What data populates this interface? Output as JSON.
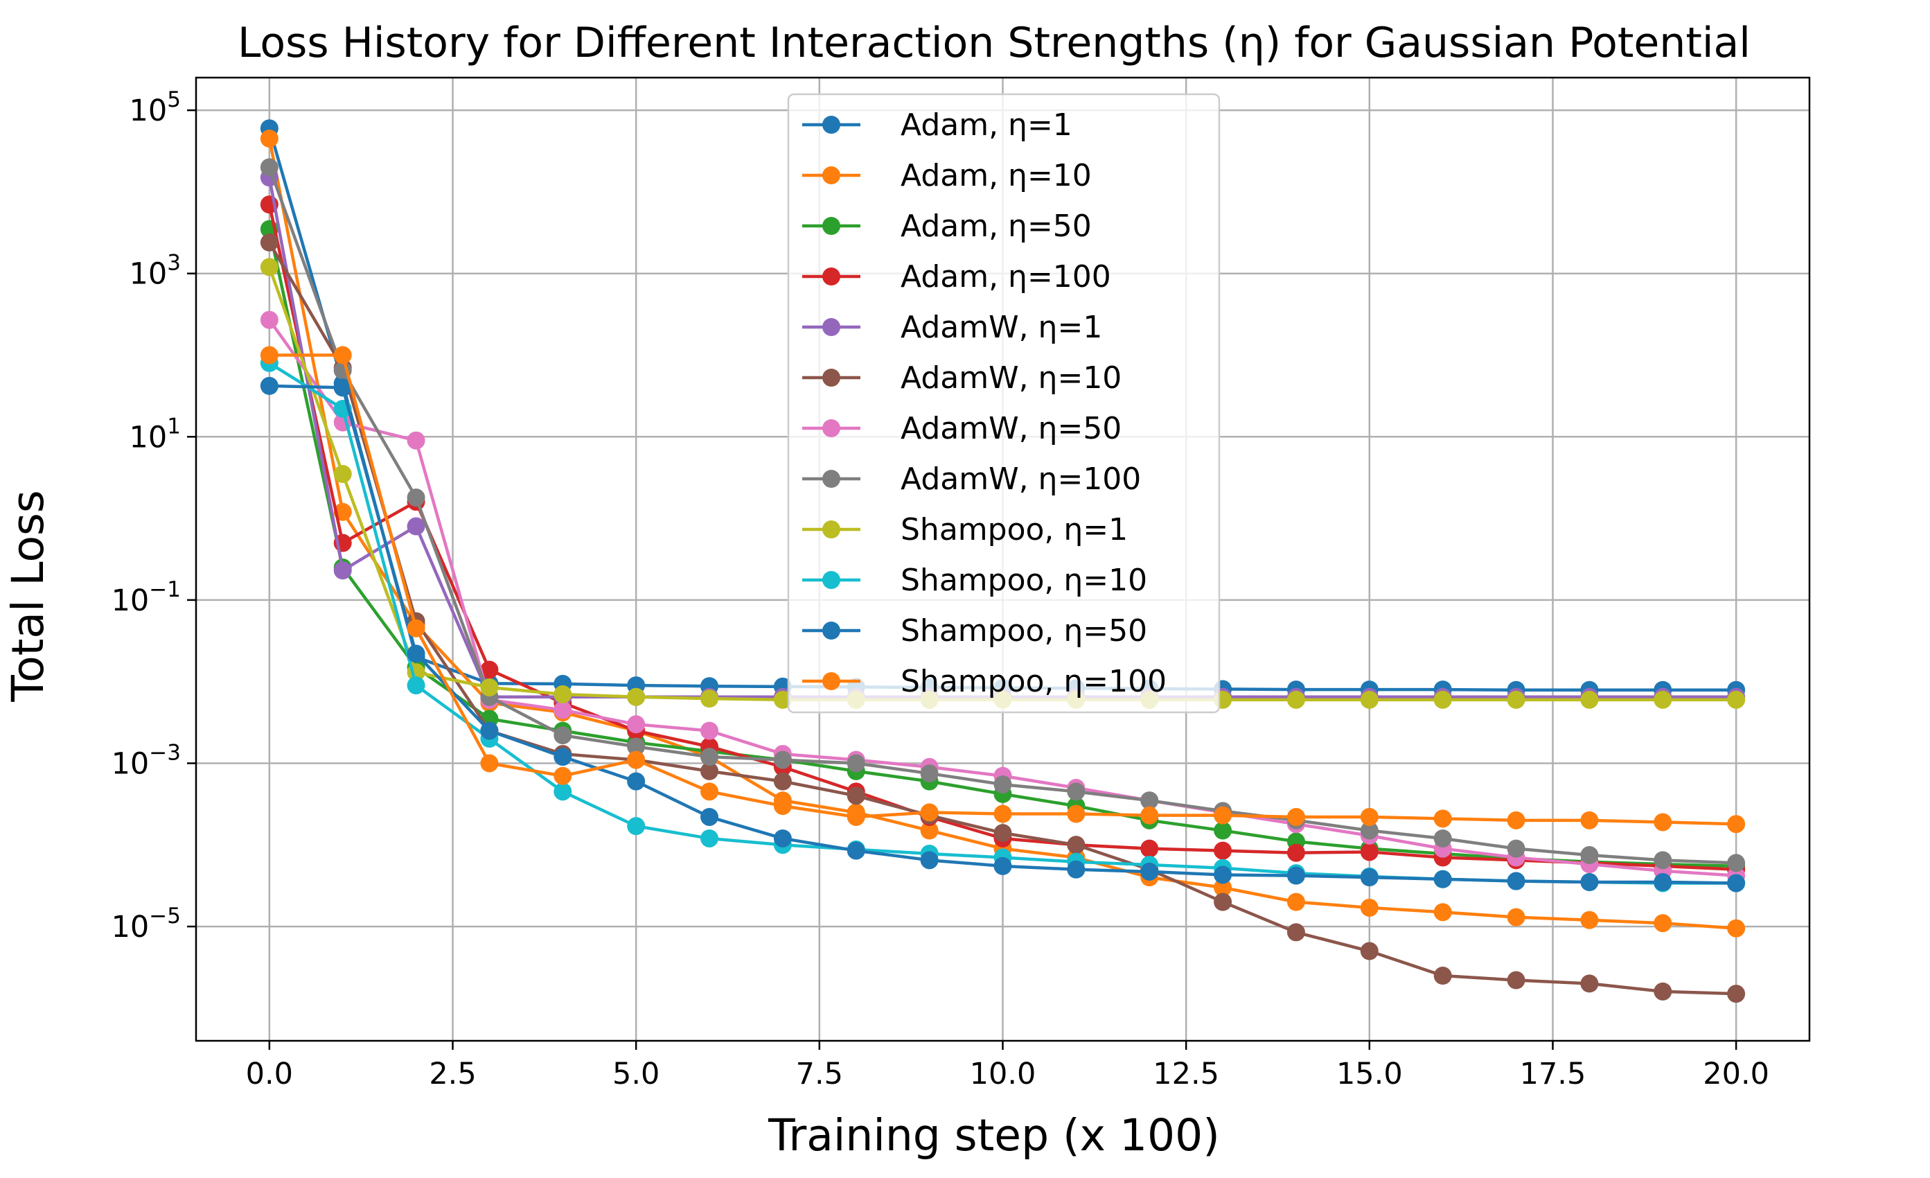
{
  "chart_data": {
    "type": "line",
    "title": "Loss History for Different Interaction Strengths (η) for Gaussian Potential",
    "xlabel": "Training step (x 100)",
    "ylabel": "Total Loss",
    "xlim": [
      -1,
      21
    ],
    "ylim_log10": [
      -6.4,
      5.4
    ],
    "yscale": "log",
    "grid": true,
    "legend_position": "upper-center",
    "x_ticks": [
      0,
      2.5,
      5,
      7.5,
      10,
      12.5,
      15,
      17.5,
      20
    ],
    "x_tick_labels": [
      "0.0",
      "2.5",
      "5.0",
      "7.5",
      "10.0",
      "12.5",
      "15.0",
      "17.5",
      "20.0"
    ],
    "y_ticks_log10": [
      -5,
      -3,
      -1,
      1,
      3,
      5
    ],
    "y_tick_labels": [
      {
        "base": "10",
        "exp": "−5"
      },
      {
        "base": "10",
        "exp": "−3"
      },
      {
        "base": "10",
        "exp": "−1"
      },
      {
        "base": "10",
        "exp": "1"
      },
      {
        "base": "10",
        "exp": "3"
      },
      {
        "base": "10",
        "exp": "5"
      }
    ],
    "x": [
      0,
      1,
      2,
      3,
      4,
      5,
      6,
      7,
      8,
      9,
      10,
      11,
      12,
      13,
      14,
      15,
      16,
      17,
      18,
      19,
      20
    ],
    "series": [
      {
        "name": "Adam, η=1",
        "color": "#1f77b4",
        "values": [
          60000,
          45,
          0.02,
          0.0095,
          0.0094,
          0.009,
          0.0088,
          0.0087,
          0.0086,
          0.0085,
          0.0084,
          0.0083,
          0.0082,
          0.0081,
          0.008,
          0.008,
          0.008,
          0.0079,
          0.0079,
          0.0079,
          0.0079
        ]
      },
      {
        "name": "Adam, η=10",
        "color": "#ff7f0e",
        "values": [
          45000,
          1.2,
          0.05,
          0.0055,
          0.0042,
          0.0025,
          0.0012,
          0.00035,
          0.00025,
          0.00015,
          9e-05,
          7e-05,
          4e-05,
          3e-05,
          2e-05,
          1.7e-05,
          1.5e-05,
          1.3e-05,
          1.2e-05,
          1.1e-05,
          9.5e-06
        ]
      },
      {
        "name": "Adam, η=50",
        "color": "#2ca02c",
        "values": [
          3500,
          0.25,
          0.015,
          0.0035,
          0.0025,
          0.0018,
          0.0014,
          0.0011,
          0.0008,
          0.0006,
          0.00042,
          0.0003,
          0.0002,
          0.00015,
          0.00011,
          9e-05,
          7.8e-05,
          6.8e-05,
          6.2e-05,
          5.8e-05,
          5.5e-05
        ]
      },
      {
        "name": "Adam, η=100",
        "color": "#d62728",
        "values": [
          7000,
          0.5,
          1.6,
          0.014,
          0.0055,
          0.0025,
          0.0016,
          0.0009,
          0.00045,
          0.00022,
          0.00012,
          0.0001,
          9e-05,
          8.5e-05,
          8e-05,
          8.2e-05,
          7e-05,
          6.5e-05,
          6e-05,
          5.5e-05,
          5e-05
        ]
      },
      {
        "name": "AdamW, η=1",
        "color": "#9467bd",
        "values": [
          15000,
          0.23,
          0.8,
          0.0065,
          0.0065,
          0.0065,
          0.0065,
          0.0065,
          0.0065,
          0.0065,
          0.0065,
          0.0065,
          0.0065,
          0.0065,
          0.0065,
          0.0065,
          0.0065,
          0.0065,
          0.0065,
          0.0065,
          0.0065
        ]
      },
      {
        "name": "AdamW, η=10",
        "color": "#8c564b",
        "values": [
          2400,
          70,
          0.055,
          0.0025,
          0.0013,
          0.0011,
          0.0008,
          0.0006,
          0.0004,
          0.00023,
          0.00014,
          0.0001,
          5e-05,
          2e-05,
          8.5e-06,
          5e-06,
          2.5e-06,
          2.2e-06,
          2e-06,
          1.6e-06,
          1.5e-06
        ]
      },
      {
        "name": "AdamW, η=50",
        "color": "#e377c2",
        "values": [
          270,
          15,
          9,
          0.006,
          0.0045,
          0.003,
          0.0025,
          0.0013,
          0.0011,
          0.0009,
          0.0007,
          0.0005,
          0.00035,
          0.00025,
          0.00018,
          0.00013,
          9e-05,
          7e-05,
          5.8e-05,
          4.8e-05,
          4.2e-05
        ]
      },
      {
        "name": "AdamW, η=100",
        "color": "#7f7f7f",
        "values": [
          20000,
          65,
          1.8,
          0.0065,
          0.0022,
          0.0016,
          0.0012,
          0.0011,
          0.001,
          0.00075,
          0.00055,
          0.00045,
          0.00035,
          0.00026,
          0.0002,
          0.00015,
          0.00012,
          9e-05,
          7.5e-05,
          6.5e-05,
          6e-05
        ]
      },
      {
        "name": "Shampoo, η=1",
        "color": "#bcbd22",
        "values": [
          1200,
          3.5,
          0.013,
          0.0085,
          0.007,
          0.0065,
          0.0062,
          0.006,
          0.006,
          0.006,
          0.006,
          0.006,
          0.006,
          0.006,
          0.006,
          0.006,
          0.006,
          0.006,
          0.006,
          0.006,
          0.006
        ]
      },
      {
        "name": "Shampoo, η=10",
        "color": "#17becf",
        "values": [
          80,
          22,
          0.009,
          0.002,
          0.00045,
          0.00017,
          0.00012,
          0.0001,
          8.8e-05,
          7.8e-05,
          7e-05,
          6.2e-05,
          5.7e-05,
          5.2e-05,
          4.5e-05,
          4.1e-05,
          3.8e-05,
          3.6e-05,
          3.5e-05,
          3.4e-05,
          3.4e-05
        ]
      },
      {
        "name": "Shampoo, η=50",
        "color": "#1f77b4",
        "values": [
          42,
          40,
          0.022,
          0.0025,
          0.0012,
          0.0006,
          0.00022,
          0.00012,
          8.5e-05,
          6.5e-05,
          5.5e-05,
          5e-05,
          4.7e-05,
          4.3e-05,
          4.2e-05,
          4e-05,
          3.8e-05,
          3.6e-05,
          3.5e-05,
          3.5e-05,
          3.4e-05
        ]
      },
      {
        "name": "Shampoo, η=100",
        "color": "#ff7f0e",
        "values": [
          100,
          100,
          0.045,
          0.001,
          0.0007,
          0.0011,
          0.00045,
          0.0003,
          0.00022,
          0.00025,
          0.00024,
          0.00024,
          0.00023,
          0.00023,
          0.00022,
          0.00022,
          0.00021,
          0.0002,
          0.0002,
          0.00019,
          0.00018
        ]
      }
    ]
  }
}
